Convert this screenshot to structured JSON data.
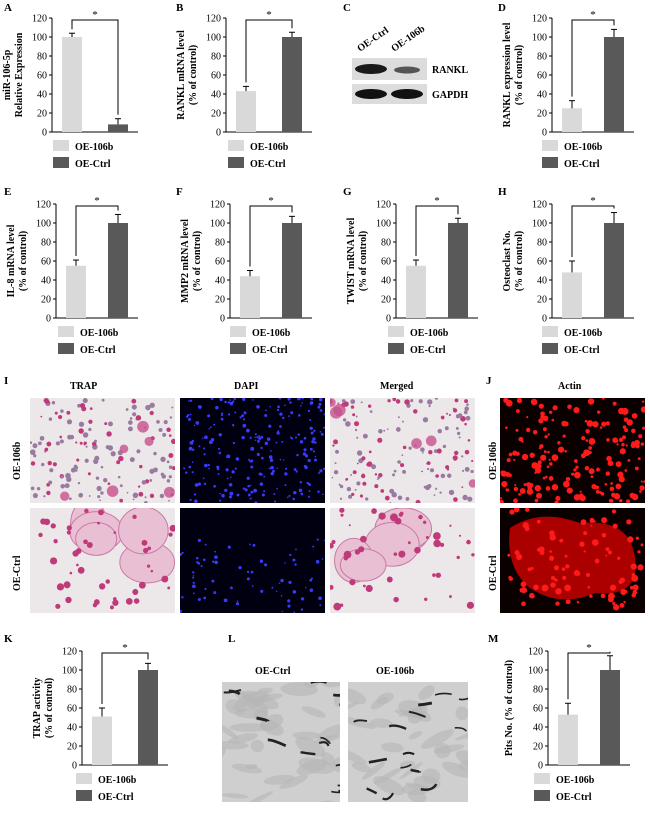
{
  "panels": {
    "A": "A",
    "B": "B",
    "C": "C",
    "D": "D",
    "E": "E",
    "F": "F",
    "G": "G",
    "H": "H",
    "I": "I",
    "J": "J",
    "K": "K",
    "L": "L",
    "M": "M"
  },
  "colors": {
    "light_bar": "#d9d9d9",
    "dark_bar": "#595959",
    "trap_bg": "#ece8ea",
    "trap_cell": "#c03a7a",
    "dapi_bg": "#000010",
    "dapi_cell": "#3a3aff",
    "actin_bg": "#0a0000",
    "actin_cell": "#ff1a1a"
  },
  "blot": {
    "lanes": [
      "OE-Ctrl",
      "OE-106b"
    ],
    "bands": [
      "RANKL",
      "GAPDH"
    ]
  },
  "panel_I": {
    "columns": [
      "TRAP",
      "DAPI",
      "Merged"
    ],
    "rows": [
      "OE-106b",
      "OE-Ctrl"
    ]
  },
  "panel_J": {
    "column": "Actin",
    "rows": [
      "OE-106b",
      "OE-Ctrl"
    ]
  },
  "panel_L": {
    "columns": [
      "OE-Ctrl",
      "OE-106b"
    ]
  },
  "chart_data": [
    {
      "panel": "A",
      "type": "bar",
      "categories": [
        "OE-Ctrl",
        "OE-106b"
      ],
      "values": [
        100,
        8
      ],
      "errors": [
        4,
        6
      ],
      "ylabel": "miR-106-5p\nRelative Expression",
      "ylim": [
        0,
        120
      ],
      "ticks": [
        0,
        20,
        40,
        60,
        80,
        100,
        120
      ],
      "legend": [
        "OE-106b",
        "OE-Ctrl"
      ],
      "significance": "*",
      "bar_colors": [
        "light",
        "dark"
      ]
    },
    {
      "panel": "B",
      "type": "bar",
      "categories": [
        "OE-106b",
        "OE-Ctrl"
      ],
      "values": [
        43,
        100
      ],
      "errors": [
        5,
        5
      ],
      "ylabel": "RANKL mRNA level\n(% of control)",
      "ylim": [
        0,
        120
      ],
      "ticks": [
        0,
        20,
        40,
        60,
        80,
        100,
        120
      ],
      "legend": [
        "OE-106b",
        "OE-Ctrl"
      ],
      "significance": "*",
      "bar_colors": [
        "light",
        "dark"
      ]
    },
    {
      "panel": "D",
      "type": "bar",
      "categories": [
        "OE-106b",
        "OE-Ctrl"
      ],
      "values": [
        25,
        100
      ],
      "errors": [
        8,
        8
      ],
      "ylabel": "RANKL expression level\n(% of control)",
      "ylim": [
        0,
        120
      ],
      "ticks": [
        0,
        20,
        40,
        60,
        80,
        100,
        120
      ],
      "legend": [
        "OE-106b",
        "OE-Ctrl"
      ],
      "significance": "*",
      "bar_colors": [
        "light",
        "dark"
      ]
    },
    {
      "panel": "E",
      "type": "bar",
      "categories": [
        "OE-106b",
        "OE-Ctrl"
      ],
      "values": [
        55,
        100
      ],
      "errors": [
        6,
        9
      ],
      "ylabel": "IL-8 mRNA level\n(% of control)",
      "ylim": [
        0,
        120
      ],
      "ticks": [
        0,
        20,
        40,
        60,
        80,
        100,
        120
      ],
      "legend": [
        "OE-106b",
        "OE-Ctrl"
      ],
      "significance": "*",
      "bar_colors": [
        "light",
        "dark"
      ]
    },
    {
      "panel": "F",
      "type": "bar",
      "categories": [
        "OE-106b",
        "OE-Ctrl"
      ],
      "values": [
        44,
        100
      ],
      "errors": [
        6,
        7
      ],
      "ylabel": "MMP2 mRNA level\n(% of control)",
      "ylim": [
        0,
        120
      ],
      "ticks": [
        0,
        20,
        40,
        60,
        80,
        100,
        120
      ],
      "legend": [
        "OE-106b",
        "OE-Ctrl"
      ],
      "significance": "*",
      "bar_colors": [
        "light",
        "dark"
      ]
    },
    {
      "panel": "G",
      "type": "bar",
      "categories": [
        "OE-106b",
        "OE-Ctrl"
      ],
      "values": [
        55,
        100
      ],
      "errors": [
        6,
        5
      ],
      "ylabel": "TWIST mRNA level\n(% of control)",
      "ylim": [
        0,
        120
      ],
      "ticks": [
        0,
        20,
        40,
        60,
        80,
        100,
        120
      ],
      "legend": [
        "OE-106b",
        "OE-Ctrl"
      ],
      "significance": "*",
      "bar_colors": [
        "light",
        "dark"
      ]
    },
    {
      "panel": "H",
      "type": "bar",
      "categories": [
        "OE-106b",
        "OE-Ctrl"
      ],
      "values": [
        48,
        100
      ],
      "errors": [
        12,
        11
      ],
      "ylabel": "Osteoclast No.\n(% of control)",
      "ylim": [
        0,
        120
      ],
      "ticks": [
        0,
        20,
        40,
        60,
        80,
        100,
        120
      ],
      "legend": [
        "OE-106b",
        "OE-Ctrl"
      ],
      "significance": "*",
      "bar_colors": [
        "light",
        "dark"
      ]
    },
    {
      "panel": "K",
      "type": "bar",
      "categories": [
        "OE-106b",
        "OE-Ctrl"
      ],
      "values": [
        51,
        100
      ],
      "errors": [
        9,
        7
      ],
      "ylabel": "TRAP activity\n(% of control)",
      "ylim": [
        0,
        120
      ],
      "ticks": [
        0,
        20,
        40,
        60,
        80,
        100,
        120
      ],
      "legend": [
        "OE-106b",
        "OE-Ctrl"
      ],
      "significance": "*",
      "bar_colors": [
        "light",
        "dark"
      ]
    },
    {
      "panel": "M",
      "type": "bar",
      "categories": [
        "OE-106b",
        "OE-Ctrl"
      ],
      "values": [
        53,
        100
      ],
      "errors": [
        12,
        15
      ],
      "ylabel": "Pits No. (% of control)",
      "ylim": [
        0,
        120
      ],
      "ticks": [
        0,
        20,
        40,
        60,
        80,
        100,
        120
      ],
      "legend": [
        "OE-106b",
        "OE-Ctrl"
      ],
      "significance": "*",
      "bar_colors": [
        "light",
        "dark"
      ]
    }
  ]
}
